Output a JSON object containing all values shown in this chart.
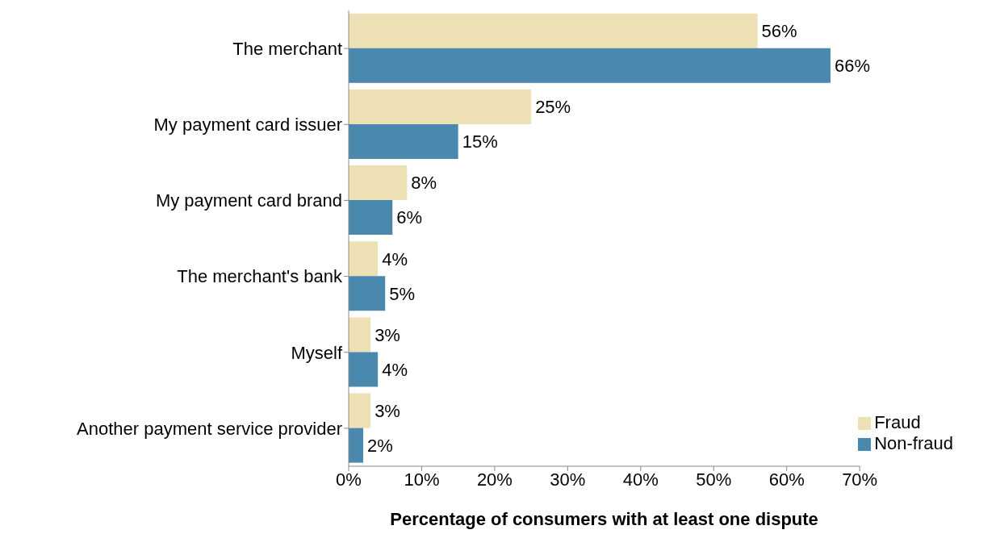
{
  "chart_data": {
    "type": "bar",
    "orientation": "horizontal",
    "xlabel": "Percentage of consumers with at least one dispute",
    "categories": [
      "The merchant",
      "My payment card issuer",
      "My payment card brand",
      "The merchant's bank",
      "Myself",
      "Another payment service provider"
    ],
    "series": [
      {
        "name": "Fraud",
        "color": "#ede0b5",
        "values": [
          56,
          25,
          8,
          4,
          3,
          3
        ],
        "value_labels": [
          "56%",
          "25%",
          "8%",
          "4%",
          "3%",
          "3%"
        ]
      },
      {
        "name": "Non-fraud",
        "color": "#4a89ad",
        "values": [
          66,
          15,
          6,
          5,
          4,
          2
        ],
        "value_labels": [
          "66%",
          "15%",
          "6%",
          "5%",
          "4%",
          "2%"
        ]
      }
    ],
    "xlim": [
      0,
      70
    ],
    "xticks": [
      {
        "value": 0,
        "label": "0%"
      },
      {
        "value": 10,
        "label": "10%"
      },
      {
        "value": 20,
        "label": "20%"
      },
      {
        "value": 30,
        "label": "30%"
      },
      {
        "value": 40,
        "label": "40%"
      },
      {
        "value": 50,
        "label": "50%"
      },
      {
        "value": 60,
        "label": "60%"
      },
      {
        "value": 70,
        "label": "70%"
      }
    ],
    "grid": false,
    "legend": "bottom right"
  }
}
